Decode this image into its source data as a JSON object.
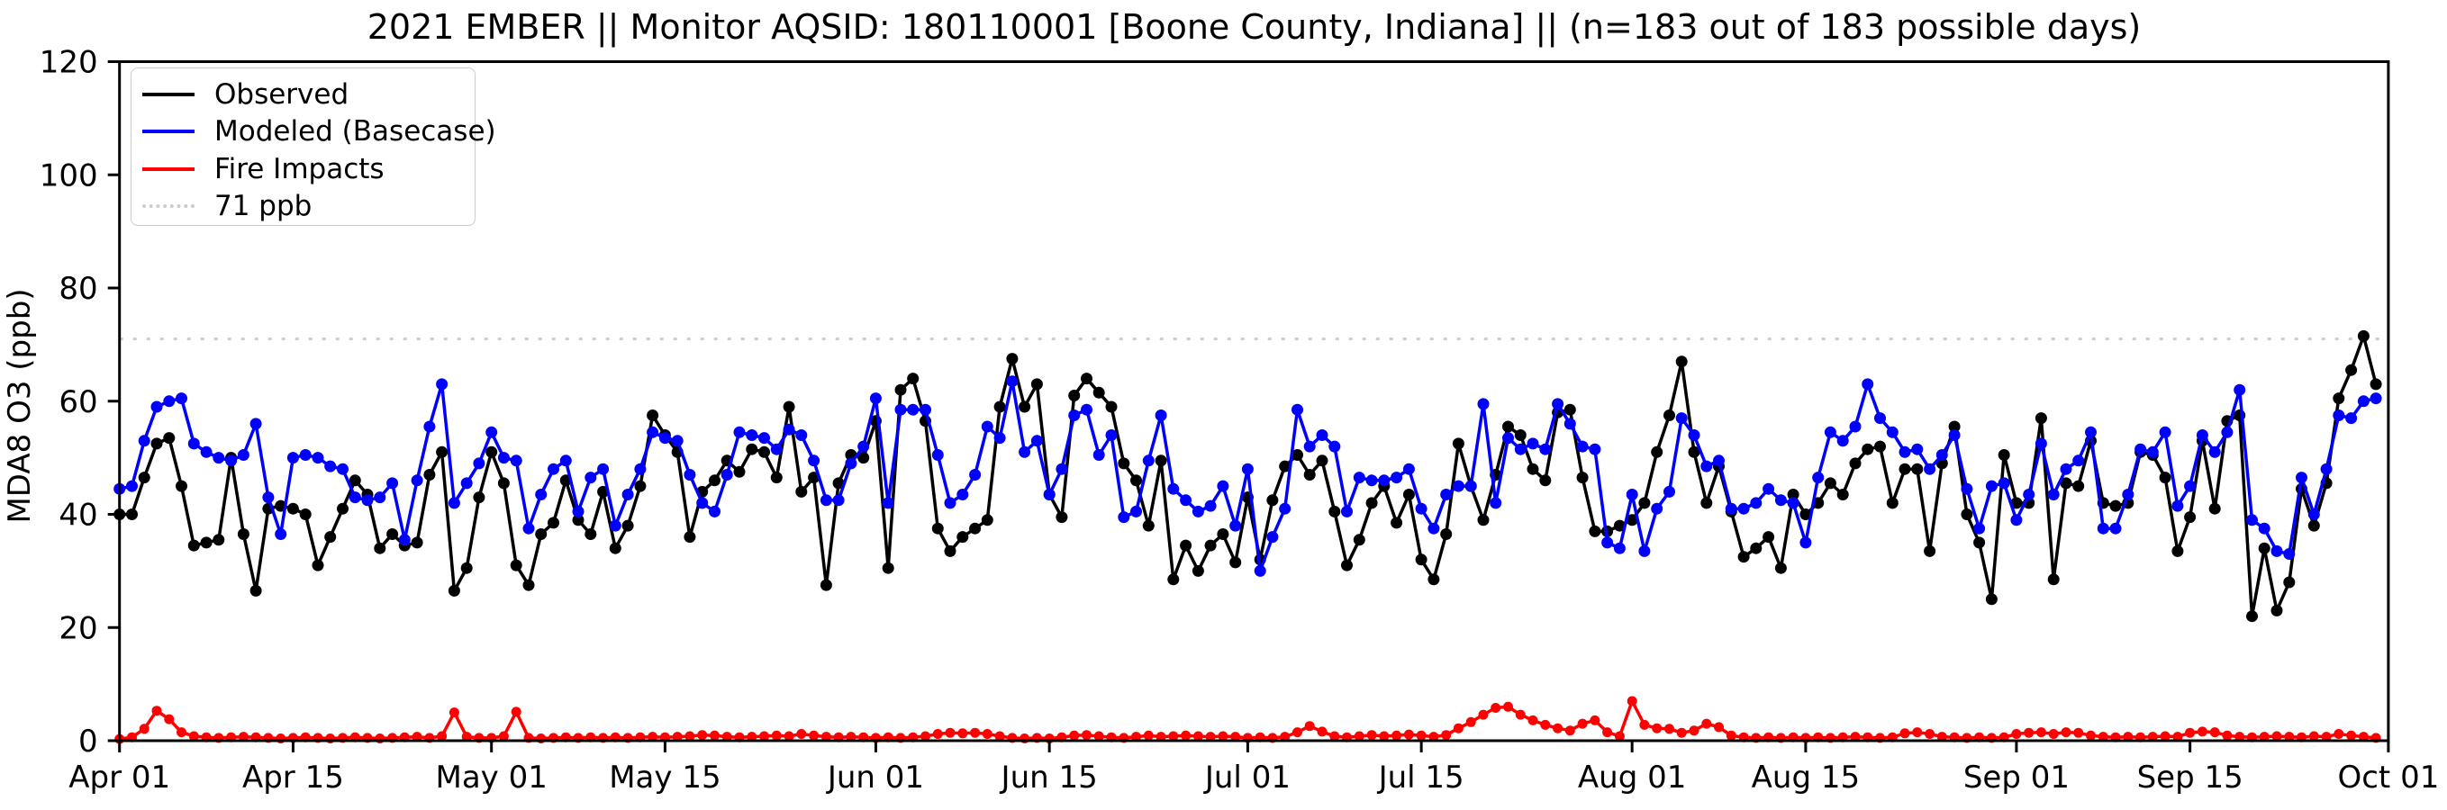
{
  "title": "2021 EMBER || Monitor AQSID: 180110001 [Boone County, Indiana] || (n=183 out of 183 possible days)",
  "ylabel": "MDA8 O3 (ppb)",
  "colors": {
    "observed": "#000000",
    "modeled": "#0000ff",
    "fire": "#ff0000",
    "threshold": "#cccccc",
    "axis": "#000000",
    "background": "#ffffff"
  },
  "legend": {
    "items": [
      {
        "label": "Observed",
        "color": "#000000",
        "style": "solid"
      },
      {
        "label": "Modeled (Basecase)",
        "color": "#0000ff",
        "style": "solid"
      },
      {
        "label": "Fire Impacts",
        "color": "#ff0000",
        "style": "solid"
      },
      {
        "label": "71 ppb",
        "color": "#cccccc",
        "style": "dotted"
      }
    ]
  },
  "chart_data": {
    "type": "line",
    "title": "2021 EMBER || Monitor AQSID: 180110001 [Boone County, Indiana] || (n=183 out of 183 possible days)",
    "xlabel": "",
    "ylabel": "MDA8 O3 (ppb)",
    "x_start": "2021-04-01",
    "x_end": "2021-09-30",
    "n_points": 183,
    "ylim": [
      0,
      120
    ],
    "y_ticks": [
      0,
      20,
      40,
      60,
      80,
      100,
      120
    ],
    "x_tick_labels": [
      "Apr 01",
      "Apr 15",
      "May 01",
      "May 15",
      "Jun 01",
      "Jun 15",
      "Jul 01",
      "Jul 15",
      "Aug 01",
      "Aug 15",
      "Sep 01",
      "Sep 15",
      "Oct 01"
    ],
    "x_tick_days": [
      0,
      14,
      30,
      44,
      61,
      75,
      91,
      105,
      122,
      136,
      153,
      167,
      183
    ],
    "grid": false,
    "legend_position": "upper left",
    "reference_line": {
      "label": "71 ppb",
      "value": 71
    },
    "series": [
      {
        "name": "Observed",
        "color": "#000000",
        "values": [
          40,
          40,
          46.5,
          52.5,
          53.5,
          45,
          34.5,
          35,
          35.5,
          50,
          36.5,
          26.5,
          41,
          41.5,
          41,
          40,
          31,
          36,
          41,
          46,
          43.5,
          34,
          36.5,
          34.5,
          35,
          47,
          51,
          26.5,
          30.5,
          43,
          51,
          45.5,
          31,
          27.5,
          36.5,
          38.5,
          46,
          39,
          36.5,
          44,
          34,
          38,
          45,
          57.5,
          54,
          51,
          36,
          44,
          46,
          49.5,
          47.5,
          51.5,
          51,
          46.5,
          59,
          44,
          46.5,
          27.5,
          45.5,
          50.5,
          50,
          56.5,
          30.5,
          62,
          64,
          56.5,
          37.5,
          33.5,
          36,
          37.5,
          39,
          59,
          67.5,
          59,
          63,
          43.5,
          39.5,
          61,
          64,
          61.5,
          59,
          49,
          46,
          38,
          49.5,
          28.5,
          34.5,
          30,
          34.5,
          36.5,
          31.5,
          43,
          32,
          42.5,
          48.5,
          50.5,
          47,
          49.5,
          40.5,
          31,
          35.5,
          42,
          45,
          38.5,
          43.5,
          32,
          28.5,
          36.5,
          52.5,
          45,
          39,
          47,
          55.5,
          54,
          48,
          46,
          58,
          58.5,
          46.5,
          37,
          37,
          38,
          39,
          42,
          51,
          57.5,
          67,
          51,
          42,
          48.5,
          40.5,
          32.5,
          34,
          36,
          30.5,
          43.5,
          40,
          42,
          45.5,
          43.5,
          49,
          51.5,
          52,
          42,
          48,
          48,
          33.5,
          49,
          55.5,
          40,
          35,
          25,
          50.5,
          42,
          42,
          57,
          28.5,
          45.5,
          45,
          53,
          42,
          41.5,
          42,
          51,
          50.5,
          46.5,
          33.5,
          39.5,
          53,
          41,
          56.5,
          57.5,
          22,
          34,
          23,
          28,
          44.5,
          38,
          45.5,
          60.5,
          65.5,
          71.5,
          63
        ]
      },
      {
        "name": "Modeled (Basecase)",
        "color": "#0000ff",
        "values": [
          44.5,
          45,
          53,
          59,
          60,
          60.5,
          52.5,
          51,
          50,
          49.5,
          50.5,
          56,
          43,
          36.5,
          50,
          50.5,
          50,
          48.5,
          48,
          43,
          42.5,
          43,
          45.5,
          35.5,
          46,
          55.5,
          63,
          42,
          45.5,
          49,
          54.5,
          50,
          49.5,
          37.5,
          43.5,
          48,
          49.5,
          40.5,
          46.5,
          48,
          38,
          43.5,
          48,
          54.5,
          53.5,
          53,
          47,
          42,
          40.5,
          47,
          54.5,
          54,
          53.5,
          51.5,
          55,
          54,
          49.5,
          42.5,
          42.5,
          49,
          52,
          60.5,
          42,
          58.5,
          58.5,
          58.5,
          50.5,
          42,
          43.5,
          47,
          55.5,
          53.5,
          63.5,
          51,
          53,
          43.5,
          48,
          57.5,
          58.5,
          50.5,
          54,
          39.5,
          40.5,
          49.5,
          57.5,
          44.5,
          42.5,
          40.5,
          41.5,
          45,
          38,
          48,
          30,
          36,
          41,
          58.5,
          52,
          54,
          52,
          40.5,
          46.5,
          46,
          46,
          46.5,
          48,
          41,
          37.5,
          43.5,
          45,
          45,
          59.5,
          42,
          53.5,
          51.5,
          52.5,
          51.5,
          59.5,
          56,
          52,
          51.5,
          35,
          34,
          43.5,
          33.5,
          41,
          44,
          57,
          54,
          48.5,
          49.5,
          41,
          41,
          42,
          44.5,
          42.5,
          42,
          35,
          46.5,
          54.5,
          53,
          55.5,
          63,
          57,
          54.5,
          51,
          51.5,
          48,
          50.5,
          54,
          44.5,
          37.5,
          45,
          45.5,
          39,
          43.5,
          52.5,
          43.5,
          48,
          49.5,
          54.5,
          37.5,
          37.5,
          43.5,
          51.5,
          51,
          54.5,
          41.5,
          45,
          54,
          51,
          54.5,
          62,
          39,
          37.5,
          33.5,
          33,
          46.5,
          40,
          48,
          57.5,
          57,
          60,
          60.5
        ]
      },
      {
        "name": "Fire Impacts",
        "color": "#ff0000",
        "values": [
          0.3,
          0.6,
          2.1,
          5.3,
          3.8,
          1.5,
          0.8,
          0.6,
          0.5,
          0.6,
          0.7,
          0.6,
          0.5,
          0.4,
          0.5,
          0.6,
          0.5,
          0.4,
          0.5,
          0.6,
          0.5,
          0.4,
          0.5,
          0.6,
          0.7,
          0.5,
          0.8,
          5,
          0.7,
          0.5,
          0.5,
          0.8,
          5.1,
          0.5,
          0.4,
          0.5,
          0.6,
          0.5,
          0.6,
          0.5,
          0.6,
          0.5,
          0.6,
          0.7,
          0.6,
          0.7,
          0.8,
          1,
          0.9,
          0.7,
          0.6,
          0.7,
          0.8,
          0.9,
          0.8,
          1.2,
          0.9,
          0.7,
          0.6,
          0.7,
          0.6,
          0.5,
          0.6,
          0.5,
          0.6,
          0.8,
          1.2,
          1.4,
          1.3,
          1.4,
          1.2,
          0.8,
          0.5,
          0.4,
          0.5,
          0.4,
          0.6,
          0.9,
          1,
          0.8,
          0.6,
          0.5,
          0.7,
          0.9,
          0.7,
          0.8,
          0.9,
          0.8,
          0.7,
          0.8,
          0.7,
          0.5,
          0.6,
          0.5,
          0.7,
          1.5,
          2.6,
          1.6,
          0.8,
          0.6,
          0.8,
          1,
          0.8,
          0.9,
          1.1,
          0.9,
          0.7,
          1,
          2.2,
          3.3,
          4.6,
          5.8,
          6,
          4.6,
          3.6,
          2.8,
          2.2,
          1.8,
          3,
          3.6,
          1.5,
          0.8,
          7,
          2.8,
          2.2,
          2.1,
          1.4,
          1.8,
          3,
          2.4,
          0.9,
          0.6,
          0.5,
          0.6,
          0.5,
          0.6,
          0.5,
          0.6,
          0.5,
          0.6,
          0.7,
          0.6,
          0.5,
          0.6,
          1.3,
          1.5,
          1.2,
          0.7,
          0.6,
          0.5,
          0.6,
          0.5,
          0.6,
          1.2,
          1.4,
          1.5,
          1.2,
          1.5,
          1.4,
          0.9,
          0.7,
          0.6,
          0.7,
          0.6,
          0.7,
          0.8,
          0.7,
          1.4,
          1.6,
          1.5,
          0.9,
          0.7,
          0.6,
          0.7,
          0.8,
          0.7,
          0.6,
          0.8,
          0.7,
          1.2,
          0.9,
          0.7,
          0.5
        ]
      }
    ]
  }
}
